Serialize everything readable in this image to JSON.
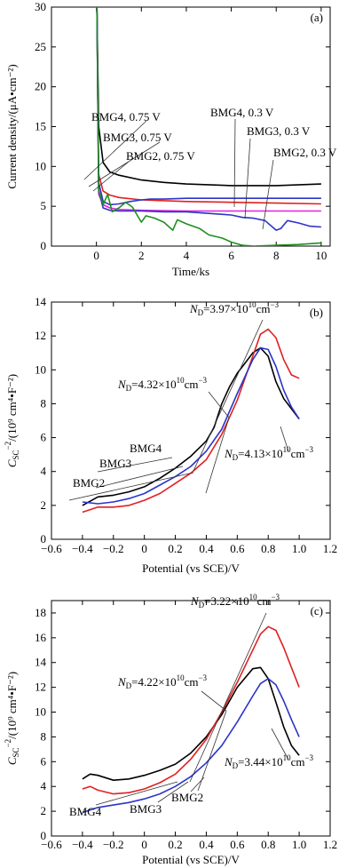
{
  "colors": {
    "black": "#000000",
    "red": "#e02020",
    "blue": "#2b34c8",
    "magenta": "#e020e0",
    "green": "#1f8f1f",
    "gray": "#555555"
  },
  "chart_data": [
    {
      "type": "line",
      "panel_label": "(a)",
      "xlabel": "Time/ks",
      "ylabel": "Current density/(μA•cm⁻²)",
      "xlim": [
        -2,
        10.4
      ],
      "ylim": [
        0,
        30
      ],
      "xticks": [
        0,
        2,
        4,
        6,
        8,
        10
      ],
      "yticks": [
        0,
        5,
        10,
        15,
        20,
        25,
        30
      ],
      "series": [
        {
          "name": "BMG4, 0.75 V",
          "color": "#000000",
          "x": [
            0.02,
            0.1,
            0.3,
            0.6,
            1,
            2,
            3,
            4,
            6,
            8,
            10
          ],
          "y": [
            30,
            15,
            10.5,
            9.3,
            8.9,
            8.3,
            8.0,
            7.8,
            7.6,
            7.6,
            7.8
          ]
        },
        {
          "name": "BMG3, 0.75 V",
          "color": "#e02020",
          "x": [
            0.02,
            0.1,
            0.3,
            0.6,
            1,
            2,
            4,
            6,
            8,
            10
          ],
          "y": [
            30,
            9,
            6.9,
            6.4,
            6.1,
            5.8,
            5.6,
            5.5,
            5.4,
            5.3
          ]
        },
        {
          "name": "BMG2, 0.75 V",
          "color": "#e020e0",
          "x": [
            0.02,
            0.1,
            0.3,
            0.6,
            1,
            2,
            4,
            6,
            8,
            10
          ],
          "y": [
            30,
            6.5,
            5.2,
            4.8,
            4.6,
            4.5,
            4.4,
            4.4,
            4.4,
            4.4
          ]
        },
        {
          "name": "BMG4, 0.3 V",
          "color": "#2b34c8",
          "x": [
            0.02,
            0.1,
            0.3,
            0.6,
            1,
            1.5,
            2,
            2.4,
            3,
            4,
            5,
            6,
            6.5,
            7,
            8,
            8.4,
            9,
            9.5,
            10
          ],
          "y": [
            30,
            8,
            5.6,
            5.2,
            5.3,
            5.6,
            5.8,
            5.9,
            5.9,
            6.0,
            6.0,
            6.0,
            6.0,
            6.0,
            6.0,
            6.0,
            6.0,
            6.0,
            6.0
          ]
        },
        {
          "name": "BMG3, 0.3 V",
          "color": "#2b34c8",
          "x": [
            0.02,
            0.1,
            0.3,
            0.6,
            1,
            2,
            3,
            4,
            5,
            6,
            6.5,
            7,
            7.5,
            8,
            8.2,
            8.5,
            9,
            9.5,
            10
          ],
          "y": [
            30,
            7,
            4.8,
            4.5,
            4.4,
            4.4,
            4.3,
            4.3,
            4.1,
            3.9,
            3.6,
            3.5,
            3.2,
            2.0,
            2.2,
            3.2,
            2.9,
            2.5,
            2.4
          ]
        },
        {
          "name": "BMG2, 0.3 V",
          "color": "#1f8f1f",
          "x": [
            0.02,
            0.1,
            0.3,
            0.5,
            0.7,
            1,
            1.3,
            1.6,
            2,
            2.2,
            2.6,
            3,
            3.4,
            3.6,
            4,
            4.6,
            5,
            5.6,
            6,
            6.5,
            7,
            8,
            9,
            10
          ],
          "y": [
            30,
            7,
            5.2,
            6.5,
            4.3,
            4.8,
            5.5,
            4.9,
            3.0,
            3.8,
            3.5,
            3.0,
            2.0,
            3.3,
            2.8,
            2.2,
            1.4,
            1.0,
            0.5,
            0.1,
            0.0,
            0.1,
            0.2,
            0.4
          ]
        }
      ],
      "annotations": [
        "BMG4, 0.75 V",
        "BMG3, 0.75 V",
        "BMG2, 0.75 V",
        "BMG4, 0.3 V",
        "BMG3, 0.3 V",
        "BMG2, 0.3 V"
      ]
    },
    {
      "type": "line",
      "panel_label": "(b)",
      "xlabel": "Potential (vs SCE)/V",
      "ylabel": "C_SC⁻²/(10⁹ cm⁴•F⁻²)",
      "xlim": [
        -0.6,
        1.2
      ],
      "ylim": [
        0,
        14
      ],
      "xticks": [
        -0.6,
        -0.4,
        -0.2,
        0,
        0.2,
        0.4,
        0.6,
        0.8,
        1.0,
        1.2
      ],
      "yticks": [
        0,
        2,
        4,
        6,
        8,
        10,
        12,
        14
      ],
      "series": [
        {
          "name": "BMG4",
          "color": "#000000",
          "x": [
            -0.4,
            -0.3,
            -0.2,
            -0.1,
            0,
            0.1,
            0.2,
            0.3,
            0.4,
            0.45,
            0.5,
            0.55,
            0.6,
            0.65,
            0.7,
            0.75,
            0.8,
            0.85,
            0.9,
            0.95,
            1.0
          ],
          "y": [
            2.0,
            2.5,
            2.6,
            2.8,
            3.1,
            3.6,
            4.2,
            4.9,
            5.8,
            6.6,
            8.0,
            9.0,
            9.8,
            10.4,
            11.0,
            11.3,
            10.8,
            9.3,
            8.3,
            7.7,
            7.1
          ]
        },
        {
          "name": "BMG3",
          "color": "#e02020",
          "x": [
            -0.4,
            -0.3,
            -0.2,
            -0.1,
            0,
            0.1,
            0.2,
            0.3,
            0.4,
            0.5,
            0.6,
            0.7,
            0.75,
            0.8,
            0.85,
            0.9,
            0.95,
            1.0
          ],
          "y": [
            1.6,
            1.9,
            1.9,
            2.0,
            2.3,
            2.7,
            3.3,
            3.9,
            4.7,
            6.2,
            8.2,
            10.8,
            12.1,
            12.4,
            11.9,
            10.6,
            9.7,
            9.5
          ]
        },
        {
          "name": "BMG2",
          "color": "#2b34c8",
          "x": [
            -0.4,
            -0.3,
            -0.2,
            -0.1,
            0,
            0.1,
            0.2,
            0.3,
            0.4,
            0.5,
            0.6,
            0.7,
            0.75,
            0.8,
            0.85,
            0.9,
            0.95,
            1.0
          ],
          "y": [
            2.2,
            2.1,
            2.2,
            2.4,
            2.7,
            3.2,
            3.7,
            4.3,
            5.2,
            6.5,
            8.6,
            10.6,
            11.3,
            11.2,
            10.2,
            8.8,
            7.8,
            7.1
          ]
        }
      ],
      "annotations": [
        "N_D=3.97×10¹⁰cm⁻³",
        "N_D=4.32×10¹⁰cm⁻³",
        "N_D=4.13×10¹⁰cm⁻³",
        "BMG4",
        "BMG3",
        "BMG2"
      ]
    },
    {
      "type": "line",
      "panel_label": "(c)",
      "xlabel": "Potential (vs SCE)/V",
      "ylabel": "C_SC⁻²/(10⁹ cm⁴•F⁻²)",
      "xlim": [
        -0.6,
        1.2
      ],
      "ylim": [
        0,
        19
      ],
      "xticks": [
        -0.6,
        -0.4,
        -0.2,
        0,
        0.2,
        0.4,
        0.6,
        0.8,
        1.0,
        1.2
      ],
      "yticks": [
        0,
        2,
        4,
        6,
        8,
        10,
        12,
        14,
        16,
        18
      ],
      "series": [
        {
          "name": "BMG4",
          "color": "#000000",
          "x": [
            -0.4,
            -0.35,
            -0.3,
            -0.2,
            -0.1,
            0,
            0.1,
            0.2,
            0.3,
            0.4,
            0.5,
            0.6,
            0.7,
            0.75,
            0.8,
            0.85,
            0.9,
            0.95,
            1.0
          ],
          "y": [
            4.6,
            5.0,
            4.9,
            4.5,
            4.6,
            4.9,
            5.3,
            5.8,
            6.7,
            8.0,
            9.8,
            12.0,
            13.5,
            13.6,
            12.7,
            10.8,
            8.8,
            7.3,
            6.5
          ]
        },
        {
          "name": "BMG3",
          "color": "#e02020",
          "x": [
            -0.4,
            -0.35,
            -0.3,
            -0.2,
            -0.1,
            0,
            0.1,
            0.2,
            0.3,
            0.4,
            0.5,
            0.6,
            0.7,
            0.75,
            0.8,
            0.85,
            0.9,
            0.95,
            1.0
          ],
          "y": [
            3.8,
            4.0,
            3.7,
            3.4,
            3.5,
            3.8,
            4.3,
            5.0,
            6.2,
            7.8,
            10.0,
            12.4,
            15.0,
            16.3,
            16.9,
            16.6,
            15.2,
            13.6,
            12.0
          ]
        },
        {
          "name": "BMG2",
          "color": "#2b34c8",
          "x": [
            -0.4,
            -0.3,
            -0.2,
            -0.1,
            0,
            0.1,
            0.2,
            0.3,
            0.4,
            0.5,
            0.6,
            0.7,
            0.75,
            0.8,
            0.85,
            0.9,
            0.95,
            1.0
          ],
          "y": [
            1.9,
            2.3,
            2.5,
            2.7,
            3.0,
            3.4,
            4.0,
            4.8,
            5.9,
            7.3,
            9.2,
            11.3,
            12.3,
            12.7,
            12.2,
            10.9,
            9.4,
            8.0
          ]
        }
      ],
      "annotations": [
        "N_D=3.22×10¹⁰cm⁻³",
        "N_D=4.22×10¹⁰cm⁻³",
        "N_D=3.44×10¹⁰cm⁻³",
        "BMG4",
        "BMG3",
        "BMG2"
      ]
    }
  ]
}
